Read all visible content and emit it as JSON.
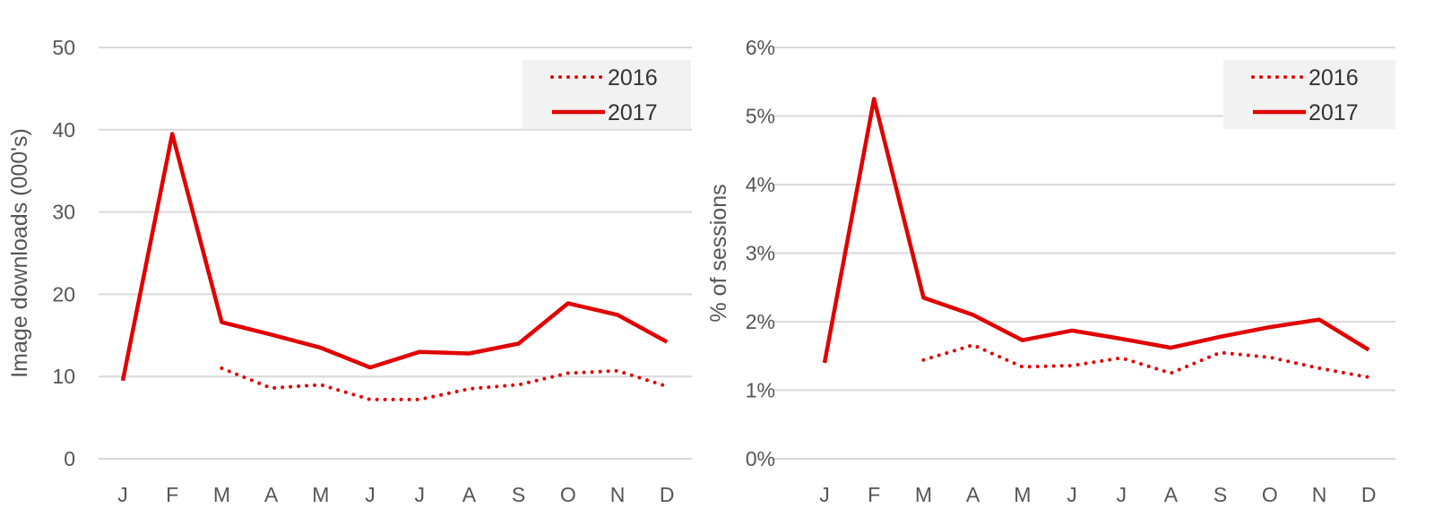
{
  "chart_data": [
    {
      "type": "line",
      "title": "",
      "xlabel": "",
      "ylabel": "Image downloads (000's)",
      "categories": [
        "J",
        "F",
        "M",
        "A",
        "M",
        "J",
        "J",
        "A",
        "S",
        "O",
        "N",
        "D"
      ],
      "ylim": [
        0,
        50
      ],
      "yticks": [
        0,
        10,
        20,
        30,
        40,
        50
      ],
      "ytick_labels": [
        "0",
        "10",
        "20",
        "30",
        "40",
        "50"
      ],
      "grid": true,
      "legend_position": "top-right",
      "series": [
        {
          "name": "2016",
          "style": "dotted",
          "color": "#e00000",
          "values": [
            null,
            null,
            11.0,
            8.6,
            9.0,
            7.2,
            7.2,
            8.5,
            9.0,
            10.4,
            10.7,
            8.8
          ]
        },
        {
          "name": "2017",
          "style": "solid",
          "color": "#e00000",
          "values": [
            9.5,
            39.5,
            16.6,
            15.1,
            13.5,
            11.1,
            13.0,
            12.8,
            14.0,
            18.9,
            17.5,
            14.2
          ]
        }
      ]
    },
    {
      "type": "line",
      "title": "",
      "xlabel": "",
      "ylabel": "% of sessions",
      "categories": [
        "J",
        "F",
        "M",
        "A",
        "M",
        "J",
        "J",
        "A",
        "S",
        "O",
        "N",
        "D"
      ],
      "ylim": [
        0,
        6
      ],
      "yticks": [
        0,
        1,
        2,
        3,
        4,
        5,
        6
      ],
      "ytick_labels": [
        "0%",
        "1%",
        "2%",
        "3%",
        "4%",
        "5%",
        "6%"
      ],
      "grid": true,
      "legend_position": "top-right",
      "series": [
        {
          "name": "2016",
          "style": "dotted",
          "color": "#e00000",
          "values": [
            null,
            null,
            1.44,
            1.66,
            1.34,
            1.36,
            1.47,
            1.25,
            1.55,
            1.48,
            1.32,
            1.19
          ]
        },
        {
          "name": "2017",
          "style": "solid",
          "color": "#e00000",
          "values": [
            1.4,
            5.25,
            2.35,
            2.1,
            1.73,
            1.87,
            1.75,
            1.62,
            1.78,
            1.92,
            2.03,
            1.59
          ]
        }
      ]
    }
  ]
}
